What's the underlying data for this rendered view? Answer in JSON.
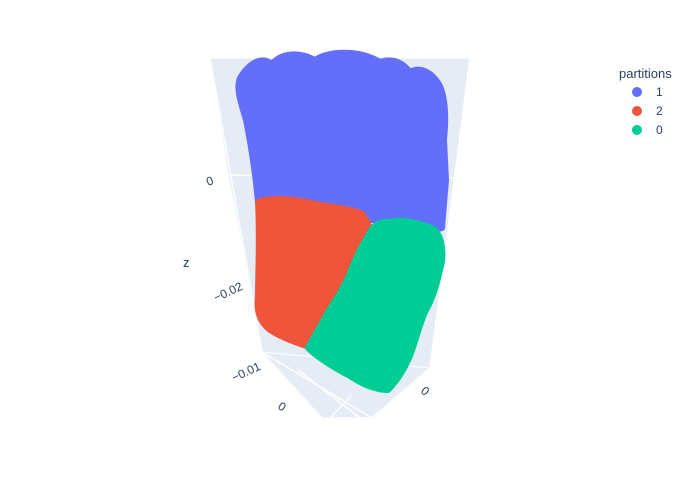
{
  "chart_data": {
    "type": "scatter",
    "projection": "3d",
    "colors": {
      "background": "#ffffff",
      "scene_pane": "#e5ecf6",
      "grid": "#ffffff",
      "text": "#2a3f5f"
    },
    "axes": {
      "z": {
        "title": "z",
        "tick_labels": [
          "0",
          "−0.02"
        ]
      },
      "x": {
        "tick_labels": [
          "−0.01",
          "0"
        ]
      },
      "y": {
        "tick_labels": [
          "0"
        ]
      }
    },
    "legend": {
      "title": "partitions",
      "position": "top-right",
      "entries": [
        {
          "name": "1",
          "color": "#636efa"
        },
        {
          "name": "2",
          "color": "#ef553b"
        },
        {
          "name": "0",
          "color": "#00cc96"
        }
      ]
    },
    "series": [
      {
        "name": "1",
        "color": "#636efa",
        "region": "upper"
      },
      {
        "name": "2",
        "color": "#ef553b",
        "region": "lower-left"
      },
      {
        "name": "0",
        "color": "#00cc96",
        "region": "lower-right"
      }
    ]
  }
}
